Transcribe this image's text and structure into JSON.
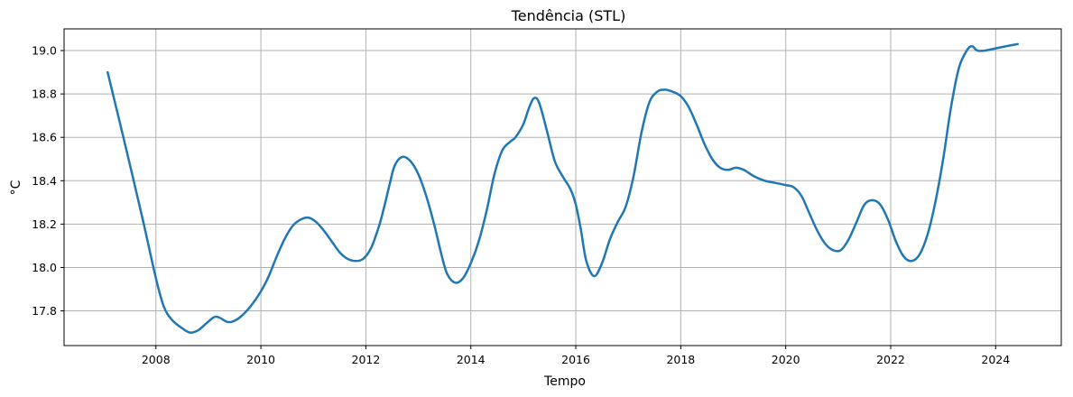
{
  "chart_data": {
    "type": "line",
    "title": "Tendência (STL)",
    "xlabel": "Tempo",
    "ylabel": "°C",
    "xlim": [
      2006.25,
      2025.25
    ],
    "ylim": [
      17.64,
      19.1
    ],
    "grid": true,
    "x_ticks": [
      2008,
      2010,
      2012,
      2014,
      2016,
      2018,
      2020,
      2022,
      2024
    ],
    "x_tick_labels": [
      "2008",
      "2010",
      "2012",
      "2014",
      "2016",
      "2018",
      "2020",
      "2022",
      "2024"
    ],
    "y_ticks": [
      17.8,
      18.0,
      18.2,
      18.4,
      18.6,
      18.8,
      19.0
    ],
    "y_tick_labels": [
      "17.8",
      "18.0",
      "18.2",
      "18.4",
      "18.6",
      "18.8",
      "19.0"
    ],
    "colors": {
      "series": "#1f77b4"
    },
    "series": [
      {
        "x": [
          2007.08,
          2007.4,
          2007.75,
          2008.0,
          2008.15,
          2008.3,
          2008.5,
          2008.65,
          2008.8,
          2008.95,
          2009.1,
          2009.2,
          2009.35,
          2009.45,
          2009.6,
          2009.8,
          2010.0,
          2010.15,
          2010.3,
          2010.45,
          2010.6,
          2010.75,
          2010.9,
          2011.05,
          2011.2,
          2011.35,
          2011.5,
          2011.65,
          2011.8,
          2011.95,
          2012.1,
          2012.25,
          2012.35,
          2012.45,
          2012.55,
          2012.7,
          2012.85,
          2013.0,
          2013.15,
          2013.3,
          2013.45,
          2013.55,
          2013.7,
          2013.85,
          2014.0,
          2014.15,
          2014.3,
          2014.45,
          2014.6,
          2014.75,
          2014.85,
          2015.0,
          2015.1,
          2015.2,
          2015.3,
          2015.45,
          2015.6,
          2015.75,
          2015.9,
          2016.0,
          2016.1,
          2016.2,
          2016.35,
          2016.5,
          2016.65,
          2016.8,
          2016.95,
          2017.1,
          2017.25,
          2017.4,
          2017.55,
          2017.7,
          2017.85,
          2018.0,
          2018.15,
          2018.3,
          2018.45,
          2018.6,
          2018.75,
          2018.9,
          2019.05,
          2019.2,
          2019.4,
          2019.6,
          2019.8,
          2020.0,
          2020.15,
          2020.3,
          2020.45,
          2020.6,
          2020.75,
          2020.9,
          2021.05,
          2021.2,
          2021.35,
          2021.5,
          2021.65,
          2021.8,
          2021.95,
          2022.1,
          2022.25,
          2022.4,
          2022.55,
          2022.7,
          2022.85,
          2023.0,
          2023.15,
          2023.3,
          2023.45,
          2023.55,
          2023.65,
          2023.8,
          2024.0,
          2024.2,
          2024.42
        ],
        "y": [
          18.9,
          18.58,
          18.22,
          17.95,
          17.82,
          17.76,
          17.72,
          17.7,
          17.71,
          17.74,
          17.77,
          17.77,
          17.75,
          17.75,
          17.77,
          17.82,
          17.89,
          17.96,
          18.05,
          18.13,
          18.19,
          18.22,
          18.23,
          18.21,
          18.17,
          18.12,
          18.07,
          18.04,
          18.03,
          18.04,
          18.09,
          18.19,
          18.28,
          18.38,
          18.47,
          18.51,
          18.49,
          18.43,
          18.33,
          18.2,
          18.05,
          17.97,
          17.93,
          17.95,
          18.02,
          18.12,
          18.26,
          18.43,
          18.54,
          18.58,
          18.6,
          18.66,
          18.73,
          18.78,
          18.76,
          18.63,
          18.49,
          18.42,
          18.36,
          18.29,
          18.17,
          18.03,
          17.96,
          18.02,
          18.13,
          18.21,
          18.28,
          18.42,
          18.62,
          18.76,
          18.81,
          18.82,
          18.81,
          18.79,
          18.74,
          18.66,
          18.57,
          18.5,
          18.46,
          18.45,
          18.46,
          18.45,
          18.42,
          18.4,
          18.39,
          18.38,
          18.37,
          18.33,
          18.25,
          18.17,
          18.11,
          18.08,
          18.08,
          18.13,
          18.21,
          18.29,
          18.31,
          18.29,
          18.22,
          18.12,
          18.05,
          18.03,
          18.06,
          18.15,
          18.3,
          18.5,
          18.74,
          18.92,
          19.0,
          19.02,
          19.0,
          19.0,
          19.01,
          19.02,
          19.03
        ]
      }
    ]
  }
}
